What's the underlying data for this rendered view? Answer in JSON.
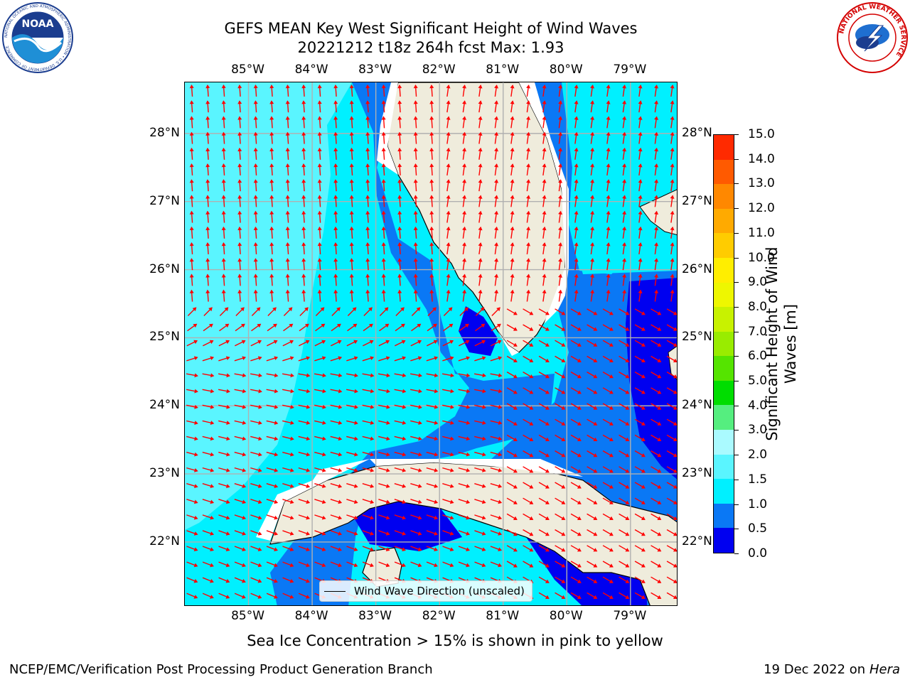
{
  "title": {
    "line1": "GEFS MEAN Key West Significant Height of Wind Waves",
    "line2": "20221212 t18z 264h fcst   Max: 1.93"
  },
  "map": {
    "lon_labels": [
      "85°W",
      "84°W",
      "83°W",
      "82°W",
      "81°W",
      "80°W",
      "79°W"
    ],
    "lat_labels": [
      "28°N",
      "27°N",
      "26°N",
      "25°N",
      "24°N",
      "23°N",
      "22°N"
    ],
    "lon_range": [
      -86,
      -78.25
    ],
    "lat_range": [
      21.05,
      28.75
    ],
    "grid": true,
    "arrow_color": "#ff0000",
    "land_color": "#efecdc",
    "legend_label": "Wind Wave Direction (unscaled)"
  },
  "colorbar": {
    "label": "Significant Height of Wind Waves [m]",
    "ticks": [
      "0.0",
      "0.5",
      "1.0",
      "1.5",
      "2.0",
      "3.0",
      "4.0",
      "5.0",
      "6.0",
      "7.0",
      "8.0",
      "9.0",
      "10.0",
      "11.0",
      "12.0",
      "13.0",
      "14.0",
      "15.0"
    ],
    "colors": [
      "#0000f0",
      "#0a78f5",
      "#00f0ff",
      "#5af5ff",
      "#aafaff",
      "#55ee7f",
      "#00dd00",
      "#55e400",
      "#99ec00",
      "#c8f200",
      "#eef700",
      "#ffee00",
      "#ffcc00",
      "#ffaa00",
      "#ff8800",
      "#ff5a00",
      "#ff2a00",
      "#ff0000"
    ]
  },
  "notes": {
    "sea_ice": "Sea Ice Concentration > 15% is shown in pink to yellow",
    "credit": "NCEP/EMC/Verification Post Processing Product Generation Branch",
    "date": "19 Dec 2022 on",
    "machine": "Hera"
  },
  "logos": {
    "noaa_text": "NOAA",
    "noaa_ring": "NATIONAL OCEANIC AND ATMOSPHERIC ADMINISTRATION • U.S. DEPARTMENT OF COMMERCE",
    "nws_ring": "NATIONAL WEATHER SERVICE"
  }
}
